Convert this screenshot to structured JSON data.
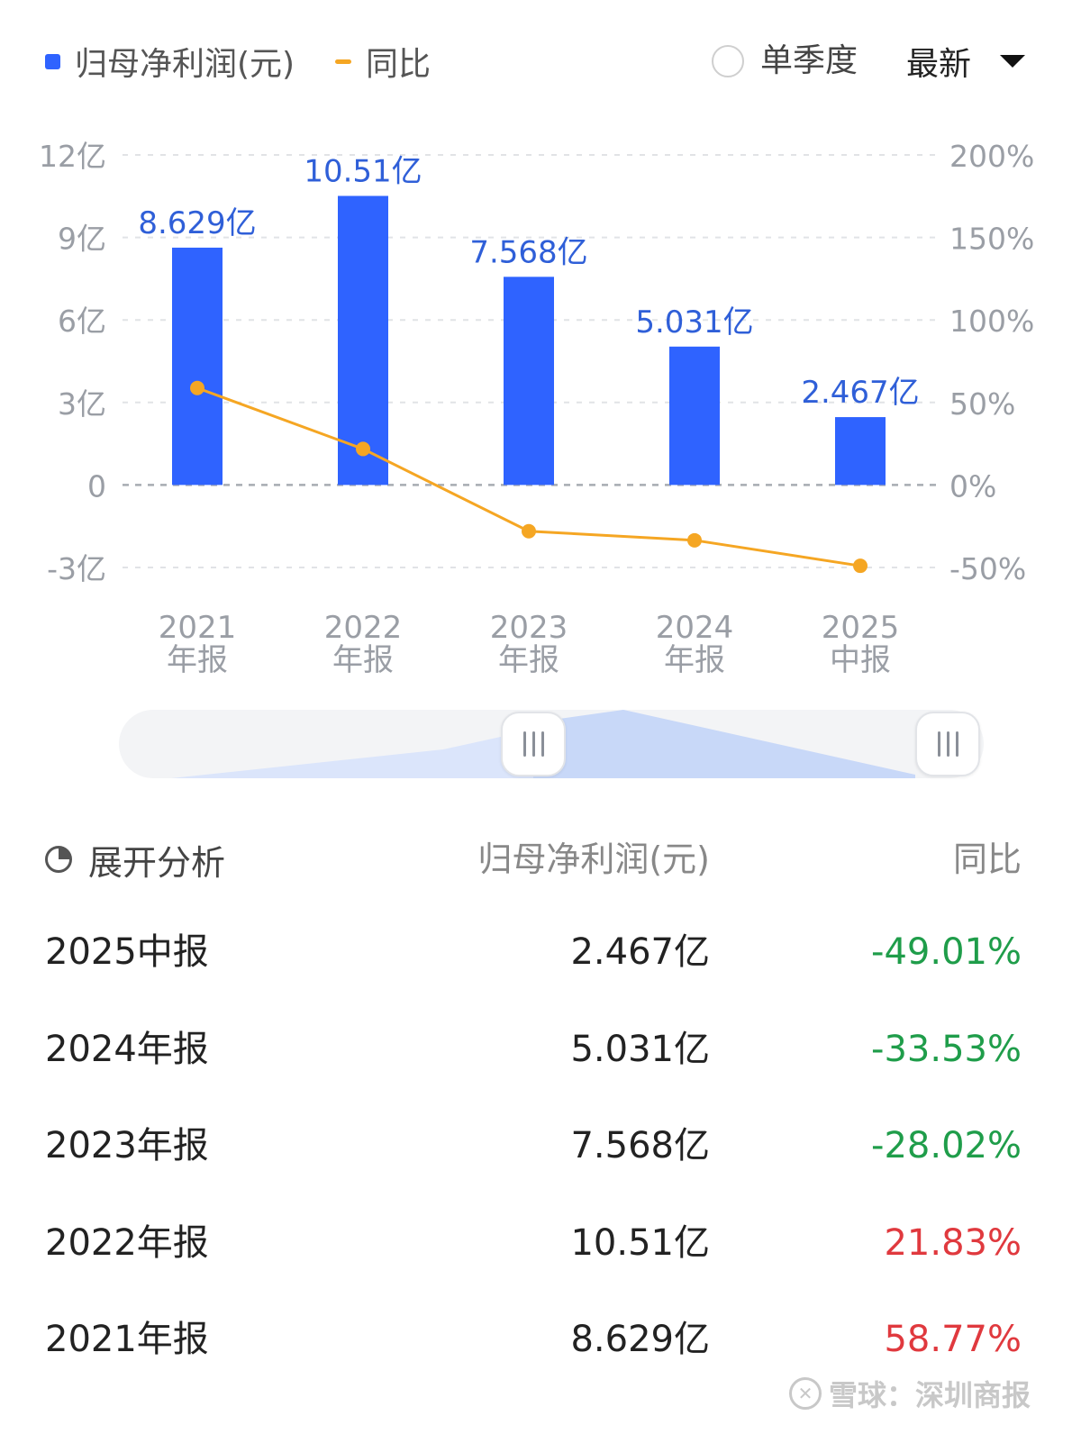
{
  "legend": {
    "profit_label": "归母净利润(元)",
    "yoy_label": "同比",
    "profit_color": "#2f63ff",
    "yoy_color": "#f5a623"
  },
  "controls": {
    "single_quarter_label": "单季度",
    "latest_label": "最新"
  },
  "chart_data": {
    "type": "bar",
    "categories": [
      "2021\n年报",
      "2022\n年报",
      "2023\n年报",
      "2024\n年报",
      "2025\n中报"
    ],
    "series": [
      {
        "name": "归母净利润(元)",
        "type": "bar",
        "axis": "left",
        "values": [
          8.629,
          10.51,
          7.568,
          5.031,
          2.467
        ],
        "labels": [
          "8.629亿",
          "10.51亿",
          "7.568亿",
          "5.031亿",
          "2.467亿"
        ]
      },
      {
        "name": "同比",
        "type": "line",
        "axis": "right",
        "values": [
          58.77,
          21.83,
          -28.02,
          -33.53,
          -49.01
        ]
      }
    ],
    "left_axis": {
      "ylim": [
        -3,
        12
      ],
      "ticks": [
        12,
        9,
        6,
        3,
        0,
        -3
      ],
      "tick_labels": [
        "12亿",
        "9亿",
        "6亿",
        "3亿",
        "0",
        "-3亿"
      ]
    },
    "right_axis": {
      "ylim": [
        -50,
        200
      ],
      "ticks": [
        200,
        150,
        100,
        50,
        0,
        -50
      ],
      "tick_labels": [
        "200%",
        "150%",
        "100%",
        "50%",
        "0%",
        "-50%"
      ]
    },
    "grid": true
  },
  "table": {
    "analysis_label": "展开分析",
    "col_value": "归母净利润(元)",
    "col_yoy": "同比",
    "rows": [
      {
        "period": "2025中报",
        "value": "2.467亿",
        "yoy": "-49.01%",
        "yoy_color": "#1f9d4a"
      },
      {
        "period": "2024年报",
        "value": "5.031亿",
        "yoy": "-33.53%",
        "yoy_color": "#1f9d4a"
      },
      {
        "period": "2023年报",
        "value": "7.568亿",
        "yoy": "-28.02%",
        "yoy_color": "#1f9d4a"
      },
      {
        "period": "2022年报",
        "value": "10.51亿",
        "yoy": "21.83%",
        "yoy_color": "#e0393e"
      },
      {
        "period": "2021年报",
        "value": "8.629亿",
        "yoy": "58.77%",
        "yoy_color": "#e0393e"
      }
    ]
  },
  "watermark": {
    "text": "雪球：深圳商报"
  }
}
